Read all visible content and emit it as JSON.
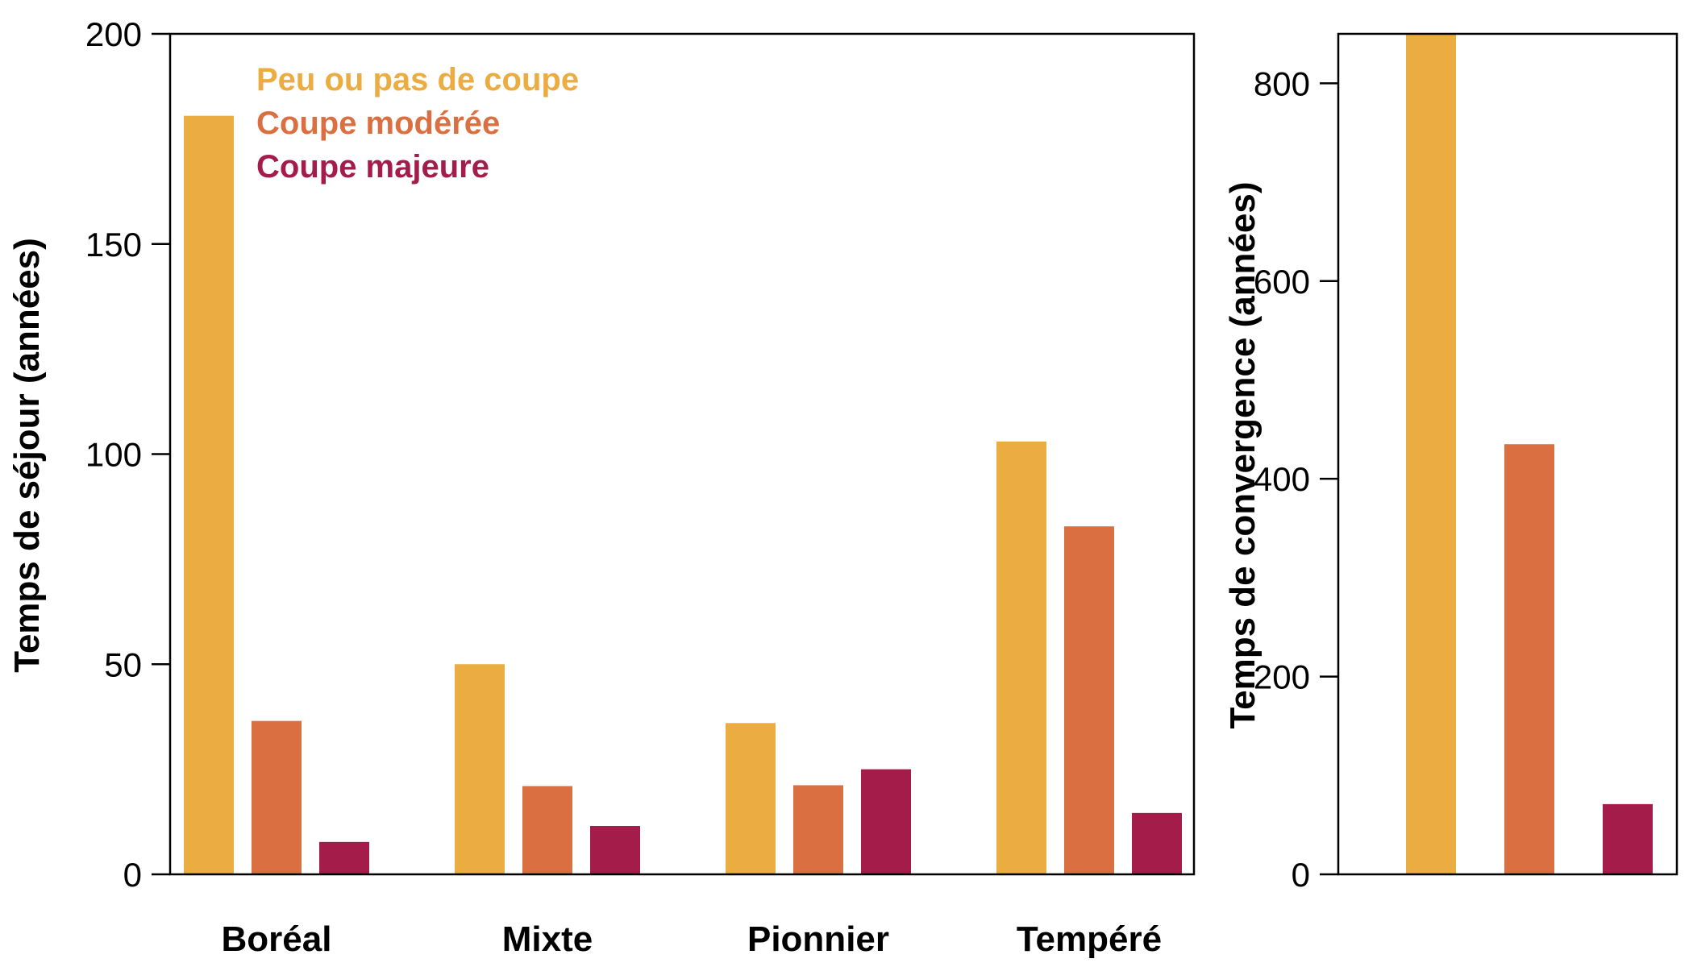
{
  "colors": {
    "peu": "#EBAC42",
    "moderee": "#DA7041",
    "majeure": "#A41C4A"
  },
  "chart_data": [
    {
      "type": "bar",
      "title": "",
      "xlabel": "",
      "ylabel": "Temps de séjour (années)",
      "ylim": [
        0,
        200
      ],
      "yticks": [
        0,
        50,
        100,
        150,
        200
      ],
      "categories": [
        "Boréal",
        "Mixte",
        "Pionnier",
        "Tempéré"
      ],
      "series": [
        {
          "name": "Peu ou pas de coupe",
          "color": "#EBAC42",
          "values": [
            180.5,
            50,
            36,
            103
          ]
        },
        {
          "name": "Coupe modérée",
          "color": "#DA7041",
          "values": [
            36.5,
            21,
            21.2,
            82.8
          ]
        },
        {
          "name": "Coupe majeure",
          "color": "#A41C4A",
          "values": [
            7.7,
            11.5,
            25,
            14.6
          ]
        }
      ],
      "legend_position": "top-left",
      "grid": false
    },
    {
      "type": "bar",
      "title": "",
      "xlabel": "",
      "ylabel": "Temps de convergence (années)",
      "ylim": [
        0,
        850
      ],
      "yticks": [
        0,
        200,
        400,
        600,
        800
      ],
      "categories": [
        "",
        "",
        ""
      ],
      "values": [
        850,
        435,
        71
      ],
      "colors": [
        "#EBAC42",
        "#DA7041",
        "#A41C4A"
      ],
      "grid": false
    }
  ]
}
